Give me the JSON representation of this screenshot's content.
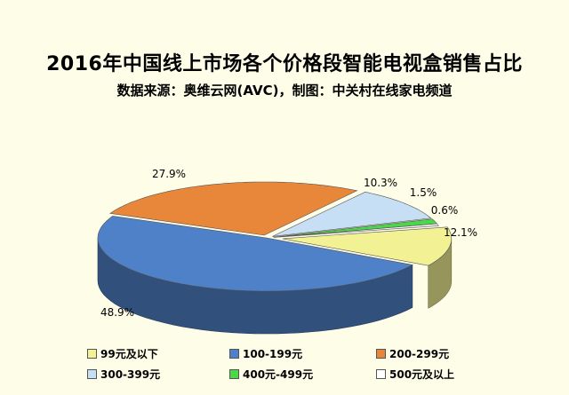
{
  "chart_data": {
    "type": "pie",
    "title": "2016年中国线上市场各个价格段智能电视盒销售占比",
    "subtitle": "数据来源：奥维云网(AVC)，制图：中关村在线家电频道",
    "slices": [
      {
        "label": "99元及以下",
        "value": 12.1,
        "display": "12.1%",
        "color": "#f2f294"
      },
      {
        "label": "100-199元",
        "value": 48.9,
        "display": "48.9%",
        "color": "#4f81c8"
      },
      {
        "label": "200-299元",
        "value": 27.9,
        "display": "27.9%",
        "color": "#e8873a"
      },
      {
        "label": "300-399元",
        "value": 10.3,
        "display": "10.3%",
        "color": "#c6dff4"
      },
      {
        "label": "400元-499元",
        "value": 1.5,
        "display": "1.5%",
        "color": "#4ad84a"
      },
      {
        "label": "500元及以上",
        "value": 0.6,
        "display": "0.6%",
        "color": "#ffffff"
      }
    ],
    "legend_position": "bottom"
  }
}
